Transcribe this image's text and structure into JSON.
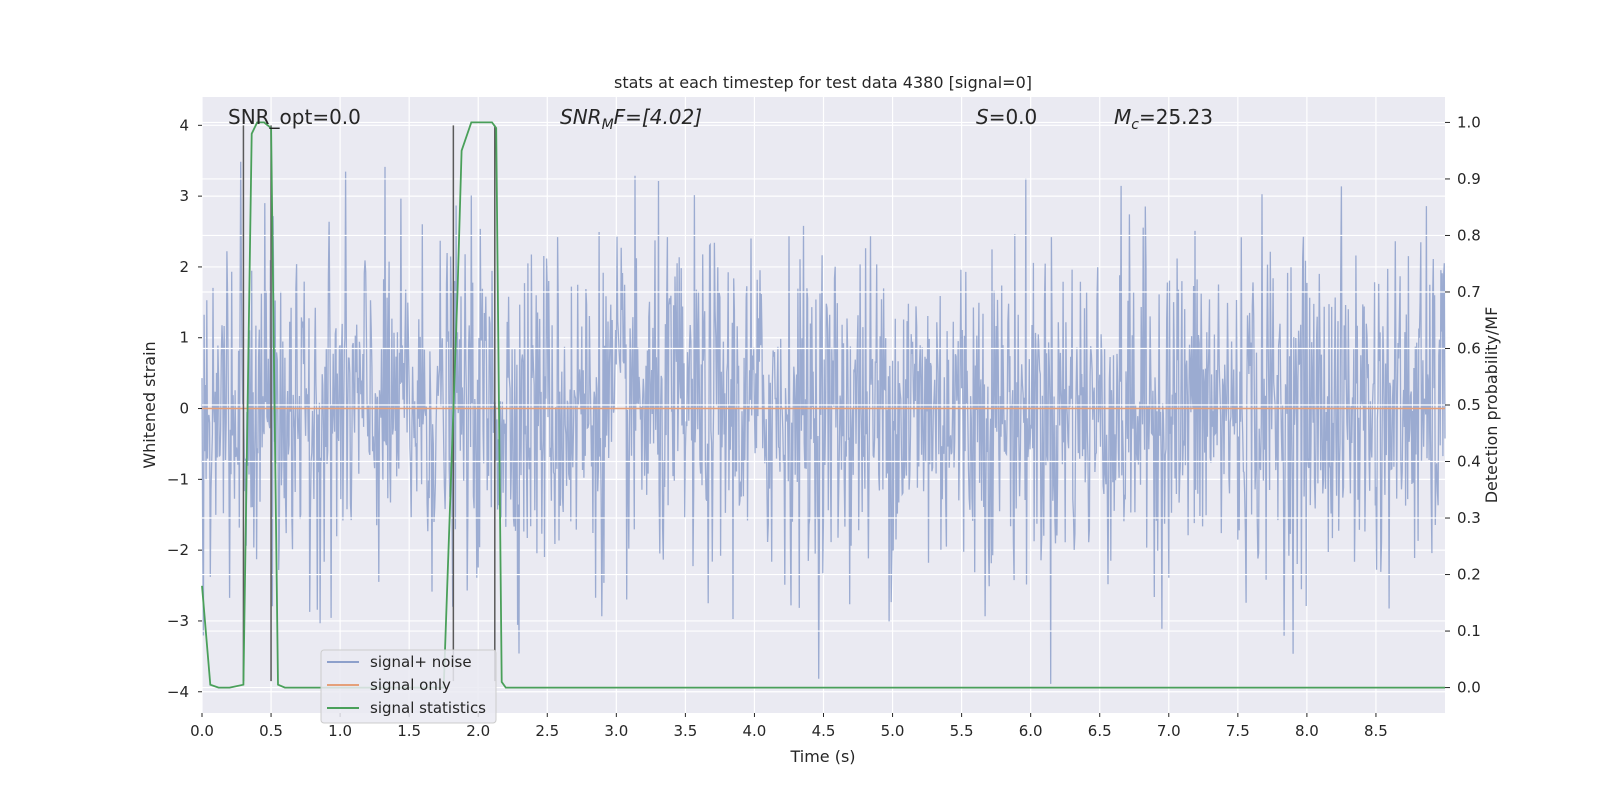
{
  "chart_data": {
    "type": "line",
    "title": "stats at each timestep for test data 4380 [signal=0]",
    "xlabel": "Time (s)",
    "ylabel": "Whitened strain",
    "y2label": "Detection probability/MF",
    "xlim": [
      0.0,
      9.0
    ],
    "ylim": [
      -4.3,
      4.4
    ],
    "y2lim": [
      -0.045,
      1.045
    ],
    "xticks": [
      0.0,
      0.5,
      1.0,
      1.5,
      2.0,
      2.5,
      3.0,
      3.5,
      4.0,
      4.5,
      5.0,
      5.5,
      6.0,
      6.5,
      7.0,
      7.5,
      8.0,
      8.5
    ],
    "xtick_labels": [
      "0.0",
      "0.5",
      "1.0",
      "1.5",
      "2.0",
      "2.5",
      "3.0",
      "3.5",
      "4.0",
      "4.5",
      "5.0",
      "5.5",
      "6.0",
      "6.5",
      "7.0",
      "7.5",
      "8.0",
      "8.5"
    ],
    "yticks": [
      4,
      3,
      2,
      1,
      0,
      -1,
      -2,
      -3,
      -4
    ],
    "ytick_labels": [
      "4",
      "3",
      "2",
      "1",
      "0",
      "−1",
      "−2",
      "−3",
      "−4"
    ],
    "y2ticks": [
      1.0,
      0.9,
      0.8,
      0.7,
      0.6,
      0.5,
      0.4,
      0.3,
      0.2,
      0.1,
      0.0
    ],
    "y2tick_labels": [
      "1.0",
      "0.9",
      "0.8",
      "0.7",
      "0.6",
      "0.5",
      "0.4",
      "0.3",
      "0.2",
      "0.1",
      "0.0"
    ],
    "grid": true,
    "legend_position": "lower-left",
    "annotations": {
      "snr_opt": "SNR_opt=0.0",
      "snr_mf_main": "SNR",
      "snr_mf_sub": "M",
      "snr_mf_rest": "F=[4.02]",
      "s_main": "S",
      "s_rest": "=0.0",
      "mc_main": "M",
      "mc_sub": "c",
      "mc_rest": "=25.23"
    },
    "series": [
      {
        "name": "signal+ noise",
        "color": "#8da0cb",
        "description_of_values": "whitened noise, approx. gaussian, amplitude up to about ±4",
        "sample_rate_hz": 200,
        "envelope": {
          "min": -4.0,
          "max": 4.0,
          "typical_sigma": 1.0
        }
      },
      {
        "name": "signal only",
        "color": "#e5a07a",
        "x": [
          0.0,
          9.0
        ],
        "y": [
          0.0,
          0.0
        ]
      },
      {
        "name": "signal statistics",
        "color": "#4aa05a",
        "axis": "right",
        "x": [
          0.0,
          0.06,
          0.12,
          0.2,
          0.3,
          0.36,
          0.4,
          0.42,
          0.45,
          0.5,
          0.55,
          0.6,
          0.7,
          1.5,
          1.75,
          1.85,
          1.88,
          1.95,
          2.0,
          2.1,
          2.13,
          2.17,
          2.2,
          2.3,
          9.0
        ],
        "y": [
          0.18,
          0.005,
          0.0,
          0.0,
          0.005,
          0.98,
          1.0,
          1.0,
          1.0,
          0.99,
          0.005,
          0.0,
          0.0,
          0.0,
          0.0,
          0.7,
          0.95,
          1.0,
          1.0,
          1.0,
          0.99,
          0.01,
          0.0,
          0.0,
          0.0
        ]
      }
    ],
    "vertical_lines": {
      "color": "#5a5a5a",
      "x": [
        0.3,
        0.5,
        1.82,
        2.12
      ]
    }
  }
}
